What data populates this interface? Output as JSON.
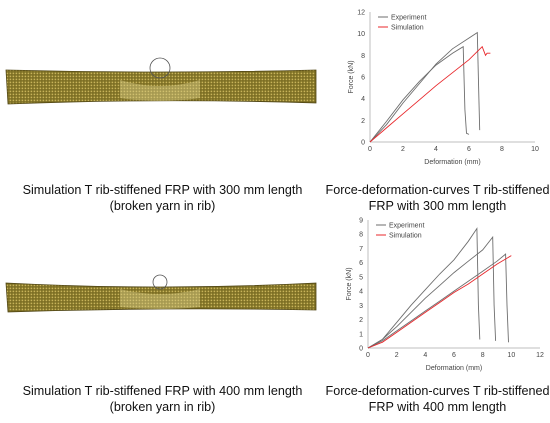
{
  "panels": [
    {
      "caption_line1": "Simulation T rib-stiffened FRP with 300 mm length",
      "caption_line2": "(broken yarn in rib)"
    },
    {
      "caption_line1": "Simulation T rib-stiffened FRP with 400 mm length",
      "caption_line2": "(broken yarn in rib)"
    }
  ],
  "chart_captions": [
    {
      "line1": "Force-deformation-curves T rib-stiffened",
      "line2": "FRP with 300 mm length"
    },
    {
      "line1": "Force-deformation-curves T rib-stiffened",
      "line2": "FRP with 400 mm length"
    }
  ],
  "colors": {
    "experiment": "#6e6e6e",
    "simulation": "#e8272b",
    "beam": "#8c7d2e"
  },
  "chart_data": [
    {
      "type": "line",
      "xlabel": "Deformation (mm)",
      "ylabel": "Force (kN)",
      "xlim": [
        0,
        10
      ],
      "ylim": [
        0,
        12
      ],
      "xticks": [
        "0",
        "2",
        "4",
        "6",
        "8",
        "10"
      ],
      "yticks": [
        "0",
        "2",
        "4",
        "6",
        "8",
        "10",
        "12"
      ],
      "legend_position": "top-left",
      "series": [
        {
          "name": "Experiment",
          "color": "#6e6e6e",
          "legend": true,
          "x": [
            0,
            1,
            2,
            3,
            4,
            5,
            6.5,
            6.6,
            6.65
          ],
          "y": [
            0,
            1.6,
            3.6,
            5.4,
            7.2,
            8.6,
            10.1,
            4.0,
            1.1
          ]
        },
        {
          "name": "",
          "color": "#6e6e6e",
          "legend": false,
          "x": [
            0,
            1,
            2,
            3,
            4,
            5,
            5.65,
            5.75,
            5.85,
            6.0
          ],
          "y": [
            0,
            1.9,
            3.9,
            5.6,
            7.1,
            8.2,
            8.8,
            3.0,
            0.8,
            0.7
          ]
        },
        {
          "name": "Simulation",
          "color": "#e8272b",
          "legend": true,
          "x": [
            0,
            1,
            2,
            3,
            4,
            5,
            6,
            6.8,
            7.0,
            7.1,
            7.3
          ],
          "y": [
            0,
            1.3,
            2.6,
            3.9,
            5.2,
            6.4,
            7.6,
            8.8,
            8.0,
            8.2,
            8.2
          ]
        }
      ]
    },
    {
      "type": "line",
      "xlabel": "Deformation (mm)",
      "ylabel": "Force (kN)",
      "xlim": [
        0,
        12
      ],
      "ylim": [
        0,
        9
      ],
      "xticks": [
        "0",
        "2",
        "4",
        "6",
        "8",
        "10",
        "12"
      ],
      "yticks": [
        "0",
        "1",
        "2",
        "3",
        "4",
        "5",
        "6",
        "7",
        "8",
        "9"
      ],
      "legend_position": "top-left",
      "series": [
        {
          "name": "Experiment",
          "color": "#6e6e6e",
          "legend": true,
          "x": [
            0,
            1,
            2,
            3,
            4,
            5,
            6,
            7,
            7.6,
            7.7,
            7.8
          ],
          "y": [
            0,
            0.6,
            1.8,
            3.0,
            4.1,
            5.2,
            6.2,
            7.5,
            8.4,
            3.0,
            0.6
          ]
        },
        {
          "name": "",
          "color": "#6e6e6e",
          "legend": false,
          "x": [
            0,
            1,
            2,
            3,
            4,
            5,
            6,
            7,
            8,
            8.7,
            8.8,
            8.9
          ],
          "y": [
            0,
            0.6,
            1.5,
            2.5,
            3.5,
            4.4,
            5.3,
            6.1,
            6.9,
            7.8,
            3.0,
            0.5
          ]
        },
        {
          "name": "",
          "color": "#6e6e6e",
          "legend": false,
          "x": [
            0,
            1,
            2,
            3,
            4,
            5,
            6,
            7,
            8,
            9,
            9.6,
            9.7,
            9.8
          ],
          "y": [
            0,
            0.5,
            1.2,
            1.9,
            2.6,
            3.3,
            4.0,
            4.7,
            5.4,
            6.1,
            6.6,
            3.0,
            0.4
          ]
        },
        {
          "name": "Simulation",
          "color": "#e8272b",
          "legend": true,
          "x": [
            0,
            1,
            2,
            3,
            4,
            5,
            6,
            7,
            8,
            9,
            10
          ],
          "y": [
            0,
            0.4,
            1.1,
            1.8,
            2.5,
            3.2,
            3.9,
            4.5,
            5.2,
            5.9,
            6.5
          ]
        }
      ]
    }
  ]
}
